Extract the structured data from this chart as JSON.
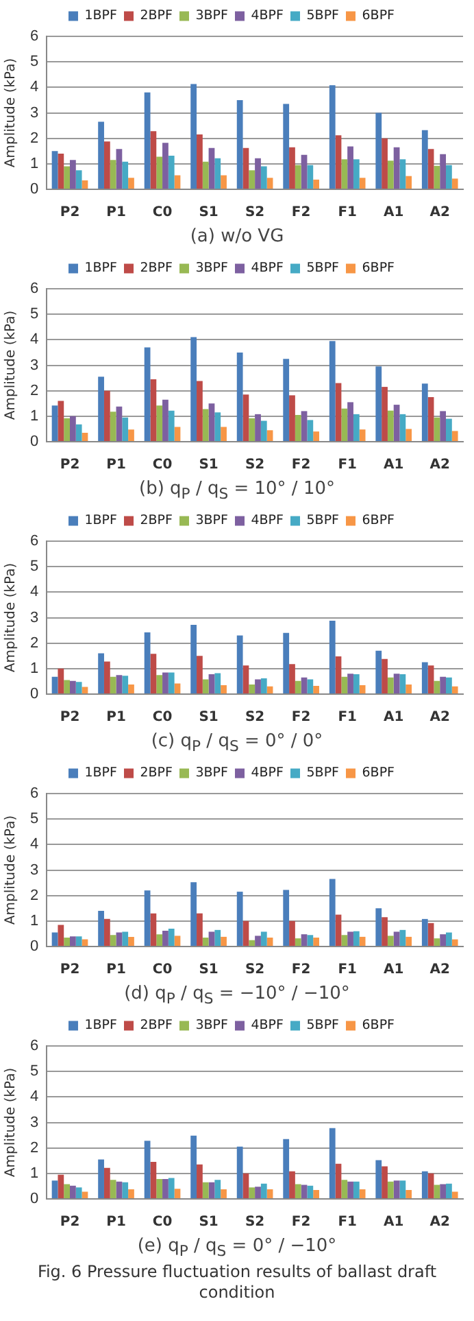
{
  "chart_data": [
    {
      "type": "bar",
      "title": "(a) w/o VG",
      "ylabel": "Amplitude (kPa)",
      "categories": [
        "P2",
        "P1",
        "C0",
        "S1",
        "S2",
        "F2",
        "F1",
        "A1",
        "A2"
      ],
      "ylim": [
        0,
        6
      ],
      "yticks": [
        0,
        1,
        2,
        3,
        4,
        5,
        6
      ],
      "grid": "y",
      "legend": "top",
      "series": [
        {
          "name": "1BPF",
          "color": "#4a7ebb",
          "values": [
            1.5,
            2.65,
            3.8,
            4.13,
            3.5,
            3.35,
            4.08,
            3.0,
            2.32
          ]
        },
        {
          "name": "2BPF",
          "color": "#be4b48",
          "values": [
            1.4,
            1.88,
            2.28,
            2.15,
            1.62,
            1.65,
            2.12,
            2.0,
            1.58
          ]
        },
        {
          "name": "3BPF",
          "color": "#98b954",
          "values": [
            0.9,
            1.15,
            1.28,
            1.08,
            0.75,
            0.95,
            1.18,
            1.12,
            0.92
          ]
        },
        {
          "name": "4BPF",
          "color": "#7d60a0",
          "values": [
            1.15,
            1.58,
            1.82,
            1.62,
            1.22,
            1.35,
            1.68,
            1.65,
            1.38
          ]
        },
        {
          "name": "5BPF",
          "color": "#46aac5",
          "values": [
            0.75,
            1.08,
            1.32,
            1.22,
            0.9,
            0.95,
            1.18,
            1.18,
            0.95
          ]
        },
        {
          "name": "6BPF",
          "color": "#f79646",
          "values": [
            0.35,
            0.45,
            0.55,
            0.55,
            0.45,
            0.38,
            0.45,
            0.52,
            0.42
          ]
        }
      ]
    },
    {
      "type": "bar",
      "title": "(b) q$_{P}$ / q$_{S}$ = 10° / 10°",
      "ylabel": "Amplitude (kPa)",
      "categories": [
        "P2",
        "P1",
        "C0",
        "S1",
        "S2",
        "F2",
        "F1",
        "A1",
        "A2"
      ],
      "ylim": [
        0,
        6
      ],
      "yticks": [
        0,
        1,
        2,
        3,
        4,
        5,
        6
      ],
      "grid": "y",
      "legend": "top",
      "series": [
        {
          "name": "1BPF",
          "color": "#4a7ebb",
          "values": [
            1.42,
            2.55,
            3.7,
            4.1,
            3.5,
            3.25,
            3.95,
            2.95,
            2.28
          ]
        },
        {
          "name": "2BPF",
          "color": "#be4b48",
          "values": [
            1.6,
            2.0,
            2.45,
            2.38,
            1.85,
            1.82,
            2.3,
            2.15,
            1.75
          ]
        },
        {
          "name": "3BPF",
          "color": "#98b954",
          "values": [
            0.92,
            1.18,
            1.42,
            1.28,
            0.92,
            1.05,
            1.3,
            1.22,
            0.95
          ]
        },
        {
          "name": "4BPF",
          "color": "#7d60a0",
          "values": [
            1.0,
            1.38,
            1.65,
            1.5,
            1.08,
            1.2,
            1.55,
            1.45,
            1.2
          ]
        },
        {
          "name": "5BPF",
          "color": "#46aac5",
          "values": [
            0.68,
            0.95,
            1.22,
            1.15,
            0.82,
            0.85,
            1.08,
            1.08,
            0.9
          ]
        },
        {
          "name": "6BPF",
          "color": "#f79646",
          "values": [
            0.35,
            0.48,
            0.58,
            0.58,
            0.45,
            0.4,
            0.48,
            0.5,
            0.42
          ]
        }
      ]
    },
    {
      "type": "bar",
      "title": "(c) q$_{P}$ / q$_{S}$ = 0° / 0°",
      "ylabel": "Amplitude (kPa)",
      "categories": [
        "P2",
        "P1",
        "C0",
        "S1",
        "S2",
        "F2",
        "F1",
        "A1",
        "A2"
      ],
      "ylim": [
        0,
        6
      ],
      "yticks": [
        0,
        1,
        2,
        3,
        4,
        5,
        6
      ],
      "grid": "y",
      "legend": "top",
      "series": [
        {
          "name": "1BPF",
          "color": "#4a7ebb",
          "values": [
            0.68,
            1.6,
            2.42,
            2.72,
            2.3,
            2.4,
            2.88,
            1.7,
            1.25
          ]
        },
        {
          "name": "2BPF",
          "color": "#be4b48",
          "values": [
            1.0,
            1.28,
            1.58,
            1.5,
            1.12,
            1.18,
            1.48,
            1.38,
            1.12
          ]
        },
        {
          "name": "3BPF",
          "color": "#98b954",
          "values": [
            0.55,
            0.68,
            0.75,
            0.58,
            0.38,
            0.52,
            0.68,
            0.65,
            0.52
          ]
        },
        {
          "name": "4BPF",
          "color": "#7d60a0",
          "values": [
            0.52,
            0.75,
            0.85,
            0.78,
            0.58,
            0.65,
            0.8,
            0.8,
            0.68
          ]
        },
        {
          "name": "5BPF",
          "color": "#46aac5",
          "values": [
            0.48,
            0.72,
            0.85,
            0.82,
            0.62,
            0.58,
            0.78,
            0.78,
            0.65
          ]
        },
        {
          "name": "6BPF",
          "color": "#f79646",
          "values": [
            0.28,
            0.38,
            0.42,
            0.35,
            0.3,
            0.32,
            0.35,
            0.38,
            0.3
          ]
        }
      ]
    },
    {
      "type": "bar",
      "title": "(d) q$_{P}$ / q$_{S}$ = −10° / −10°",
      "ylabel": "Amplitude (kPa)",
      "categories": [
        "P2",
        "P1",
        "C0",
        "S1",
        "S2",
        "F2",
        "F1",
        "A1",
        "A2"
      ],
      "ylim": [
        0,
        6
      ],
      "yticks": [
        0,
        1,
        2,
        3,
        4,
        5,
        6
      ],
      "grid": "y",
      "legend": "top",
      "series": [
        {
          "name": "1BPF",
          "color": "#4a7ebb",
          "values": [
            0.55,
            1.4,
            2.2,
            2.52,
            2.15,
            2.22,
            2.65,
            1.5,
            1.08
          ]
        },
        {
          "name": "2BPF",
          "color": "#be4b48",
          "values": [
            0.85,
            1.08,
            1.3,
            1.3,
            1.0,
            1.0,
            1.25,
            1.15,
            0.92
          ]
        },
        {
          "name": "3BPF",
          "color": "#98b954",
          "values": [
            0.35,
            0.45,
            0.48,
            0.35,
            0.25,
            0.32,
            0.45,
            0.42,
            0.32
          ]
        },
        {
          "name": "4BPF",
          "color": "#7d60a0",
          "values": [
            0.4,
            0.55,
            0.62,
            0.58,
            0.42,
            0.48,
            0.58,
            0.58,
            0.48
          ]
        },
        {
          "name": "5BPF",
          "color": "#46aac5",
          "values": [
            0.4,
            0.58,
            0.7,
            0.65,
            0.58,
            0.45,
            0.6,
            0.65,
            0.55
          ]
        },
        {
          "name": "6BPF",
          "color": "#f79646",
          "values": [
            0.28,
            0.38,
            0.42,
            0.38,
            0.35,
            0.35,
            0.38,
            0.38,
            0.28
          ]
        }
      ]
    },
    {
      "type": "bar",
      "title": "(e) q$_{P}$ / q$_{S}$ = 0° / −10°",
      "ylabel": "Amplitude (kPa)",
      "annotations": [
        "Fig. 6 Pressure fluctuation results of ballast draft condition"
      ],
      "categories": [
        "P2",
        "P1",
        "C0",
        "S1",
        "S2",
        "F2",
        "F1",
        "A1",
        "A2"
      ],
      "ylim": [
        0,
        6
      ],
      "yticks": [
        0,
        1,
        2,
        3,
        4,
        5,
        6
      ],
      "grid": "y",
      "legend": "top",
      "series": [
        {
          "name": "1BPF",
          "color": "#4a7ebb",
          "values": [
            0.72,
            1.55,
            2.28,
            2.48,
            2.05,
            2.35,
            2.78,
            1.52,
            1.08
          ]
        },
        {
          "name": "2BPF",
          "color": "#be4b48",
          "values": [
            0.95,
            1.22,
            1.45,
            1.35,
            1.0,
            1.08,
            1.38,
            1.28,
            1.0
          ]
        },
        {
          "name": "3BPF",
          "color": "#98b954",
          "values": [
            0.58,
            0.75,
            0.78,
            0.65,
            0.45,
            0.58,
            0.75,
            0.68,
            0.55
          ]
        },
        {
          "name": "4BPF",
          "color": "#7d60a0",
          "values": [
            0.52,
            0.68,
            0.78,
            0.65,
            0.48,
            0.55,
            0.68,
            0.72,
            0.58
          ]
        },
        {
          "name": "5BPF",
          "color": "#46aac5",
          "values": [
            0.45,
            0.65,
            0.82,
            0.75,
            0.6,
            0.52,
            0.68,
            0.72,
            0.6
          ]
        },
        {
          "name": "6BPF",
          "color": "#f79646",
          "values": [
            0.28,
            0.38,
            0.4,
            0.38,
            0.38,
            0.35,
            0.38,
            0.35,
            0.28
          ]
        }
      ]
    }
  ]
}
